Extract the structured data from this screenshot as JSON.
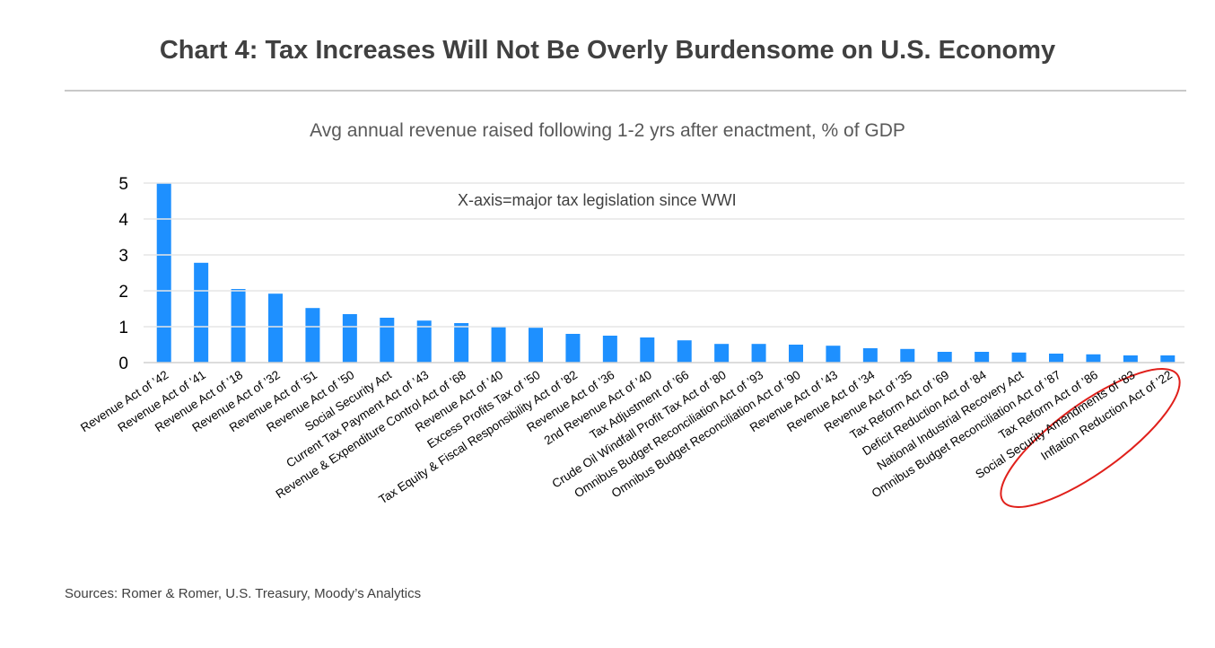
{
  "title": "Chart 4: Tax Increases Will Not Be Overly Burdensome on U.S. Economy",
  "sources": "Sources: Romer & Romer, U.S. Treasury, Moody’s Analytics",
  "colors": {
    "bar": "#1e90ff",
    "highlight": "#e0201b",
    "grid": "#e6e6e6"
  },
  "chart_data": {
    "type": "bar",
    "title": "Avg annual revenue raised following 1-2 yrs after enactment, % of GDP",
    "annotation": "X-axis=major tax legislation since WWI",
    "xlabel": "",
    "ylabel": "",
    "ylim": [
      0,
      5
    ],
    "yticks": [
      "0",
      "1",
      "2",
      "3",
      "4",
      "5"
    ],
    "grid": true,
    "highlighted": [
      "Inflation Reduction Act of ’22"
    ],
    "categories": [
      "Revenue Act of ’42",
      "Revenue Act of ’41",
      "Revenue Act of ’18",
      "Revenue Act of ’32",
      "Revenue Act of ’51",
      "Revenue Act of ’50",
      "Social Security Act",
      "Current Tax Payment Act of ’43",
      "Revenue & Expenditure Control Act of ’68",
      "Revenue Act of ’40",
      "Excess Profits Tax of ’50",
      "Tax Equity & Fiscal Responsibility Act of ’82",
      "Revenue Act of ’36",
      "2nd Revenue Act of ’40",
      "Tax Adjustment of ’66",
      "Crude Oil Windfall Profit Tax Act of ’80",
      "Omnibus Budget Reconciliation Act of ’93",
      "Omnibus Budget Reconciliation Act of ’90",
      "Revenue Act of ’43",
      "Revenue Act of ’34",
      "Revenue Act of ’35",
      "Tax Reform Act of ’69",
      "Deficit Reduction Act of ’84",
      "National Industrial Recovery Act",
      "Omnibus Budget Reconciliation Act of ’87",
      "Tax Reform Act of ’86",
      "Social Security Amendments of ’83",
      "Inflation Reduction Act of ’22"
    ],
    "values": [
      5.0,
      2.78,
      2.05,
      1.92,
      1.52,
      1.35,
      1.25,
      1.17,
      1.1,
      1.0,
      0.97,
      0.8,
      0.75,
      0.7,
      0.62,
      0.52,
      0.52,
      0.5,
      0.47,
      0.4,
      0.38,
      0.3,
      0.3,
      0.28,
      0.25,
      0.23,
      0.2,
      0.2
    ]
  }
}
